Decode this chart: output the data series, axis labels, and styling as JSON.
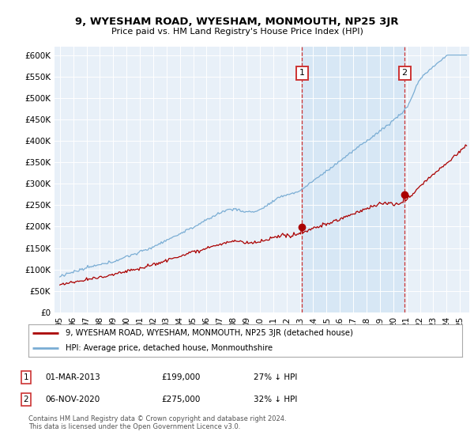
{
  "title": "9, WYESHAM ROAD, WYESHAM, MONMOUTH, NP25 3JR",
  "subtitle": "Price paid vs. HM Land Registry's House Price Index (HPI)",
  "legend_line1": "9, WYESHAM ROAD, WYESHAM, MONMOUTH, NP25 3JR (detached house)",
  "legend_line2": "HPI: Average price, detached house, Monmouthshire",
  "annotation1_label": "1",
  "annotation1_date": "01-MAR-2013",
  "annotation1_price": "£199,000",
  "annotation1_hpi": "27% ↓ HPI",
  "annotation1_year": 2013.17,
  "annotation1_value": 199000,
  "annotation2_label": "2",
  "annotation2_date": "06-NOV-2020",
  "annotation2_price": "£275,000",
  "annotation2_hpi": "32% ↓ HPI",
  "annotation2_year": 2020.85,
  "annotation2_value": 275000,
  "footnote": "Contains HM Land Registry data © Crown copyright and database right 2024.\nThis data is licensed under the Open Government Licence v3.0.",
  "hpi_color": "#7aadd4",
  "hpi_fill_color": "#d0e4f5",
  "price_color": "#aa0000",
  "dashed_vline_color": "#cc3333",
  "background_plot": "#e8f0f8",
  "ylim": [
    0,
    620000
  ],
  "yticks": [
    0,
    50000,
    100000,
    150000,
    200000,
    250000,
    300000,
    350000,
    400000,
    450000,
    500000,
    550000,
    600000
  ],
  "year_start": 1995,
  "year_end": 2025
}
